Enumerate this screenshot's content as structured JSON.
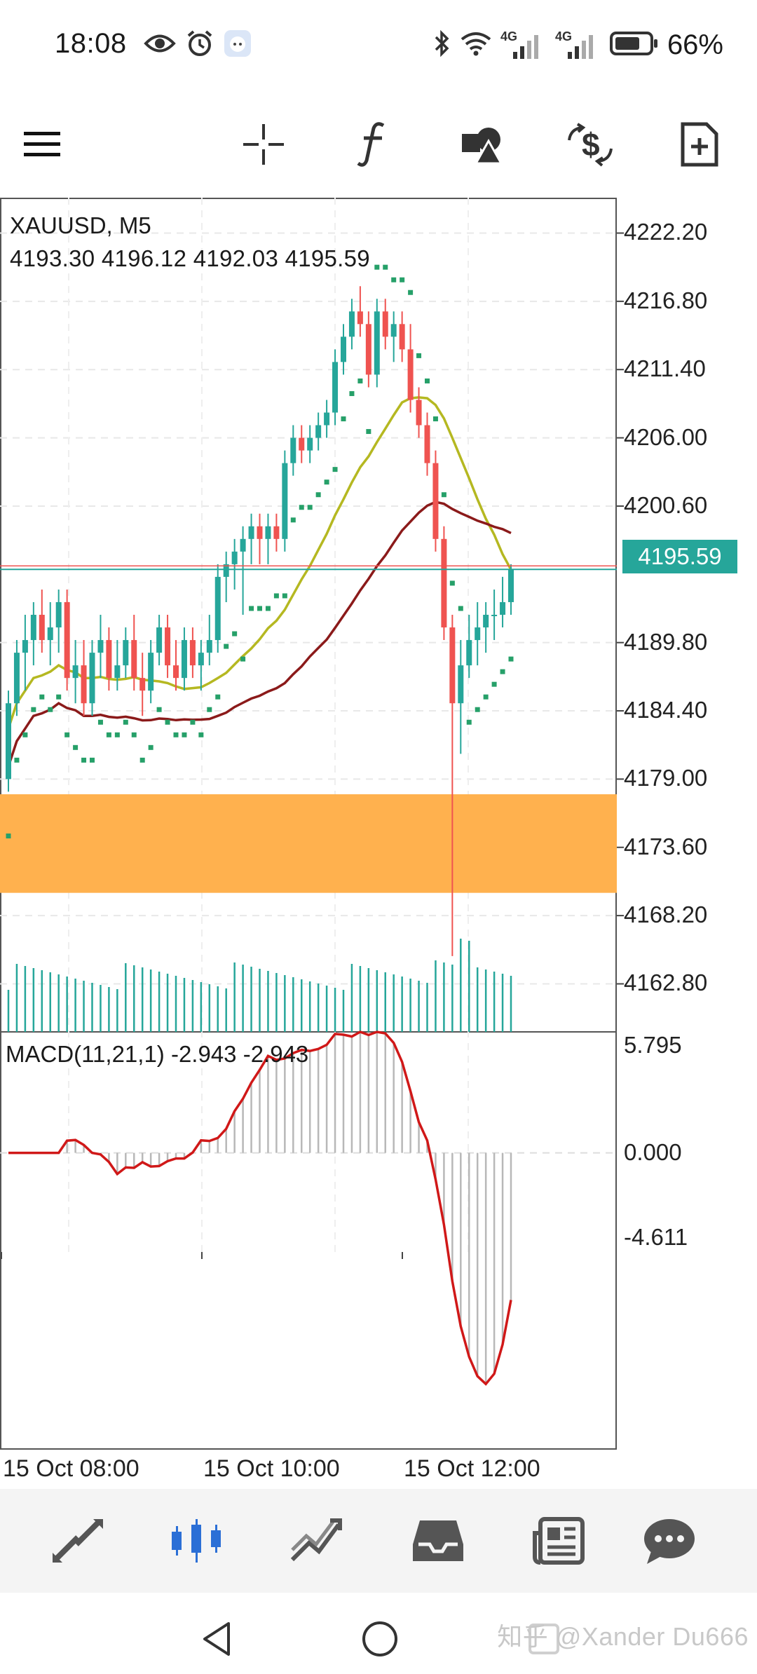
{
  "status": {
    "time": "18:08",
    "battery": "66%",
    "net1": "4G",
    "net2": "4G"
  },
  "toolbar": {
    "icons": [
      "menu-icon",
      "crosshair-icon",
      "function-icon",
      "objects-icon",
      "trade-icon",
      "new-document-icon"
    ]
  },
  "chart": {
    "symbol": "XAUUSD, M5",
    "ohlc": "4193.30 4196.12 4192.03 4195.59",
    "current_price": "4195.59",
    "y_labels": [
      "4222.20",
      "4216.80",
      "4211.40",
      "4206.00",
      "4200.60",
      "4189.80",
      "4184.40",
      "4179.00",
      "4173.60",
      "4168.20",
      "4162.80"
    ],
    "macd_label": "MACD(11,21,1) -2.943 -2.943",
    "macd_y_labels": [
      "5.795",
      "0.000",
      "-4.611"
    ],
    "x_labels": [
      "15 Oct 08:00",
      "15 Oct 10:00",
      "15 Oct 12:00"
    ],
    "colors": {
      "up": "#26a69a",
      "down": "#ef5350",
      "sar": "#26a069",
      "ma_fast": "#b5b821",
      "ma_slow": "#8b1a1a",
      "zone": "#ffb14e",
      "macd_line": "#d01818",
      "macd_hist": "#b8b8b8",
      "price_tag": "#26a69a"
    }
  },
  "chart_data": {
    "type": "candlestick",
    "title": "XAUUSD, M5",
    "ylim": [
      4159,
      4225
    ],
    "zone": [
      4170.0,
      4177.8
    ],
    "last_price": 4195.59,
    "x_ticks": [
      "15 Oct 08:00",
      "15 Oct 10:00",
      "15 Oct 12:00"
    ],
    "candles": [
      [
        4179,
        4186,
        4178,
        4185
      ],
      [
        4185,
        4190,
        4184,
        4189
      ],
      [
        4189,
        4192,
        4186,
        4190
      ],
      [
        4190,
        4193,
        4188,
        4192
      ],
      [
        4192,
        4194,
        4189,
        4190
      ],
      [
        4190,
        4193,
        4188,
        4191
      ],
      [
        4191,
        4194,
        4189,
        4193
      ],
      [
        4193,
        4194,
        4186,
        4187
      ],
      [
        4187,
        4190,
        4185,
        4188
      ],
      [
        4188,
        4190,
        4184,
        4185
      ],
      [
        4185,
        4190,
        4184,
        4189
      ],
      [
        4189,
        4192,
        4187,
        4190
      ],
      [
        4190,
        4191,
        4186,
        4187
      ],
      [
        4187,
        4190,
        4186,
        4188
      ],
      [
        4188,
        4191,
        4187,
        4190
      ],
      [
        4190,
        4192,
        4186,
        4187
      ],
      [
        4187,
        4189,
        4184,
        4186
      ],
      [
        4186,
        4190,
        4185,
        4189
      ],
      [
        4189,
        4192,
        4188,
        4191
      ],
      [
        4191,
        4192,
        4187,
        4188
      ],
      [
        4188,
        4190,
        4186,
        4187
      ],
      [
        4187,
        4191,
        4186,
        4190
      ],
      [
        4190,
        4191,
        4187,
        4188
      ],
      [
        4188,
        4190,
        4186,
        4189
      ],
      [
        4189,
        4192,
        4188,
        4190
      ],
      [
        4190,
        4196,
        4189,
        4195
      ],
      [
        4195,
        4197,
        4193,
        4196
      ],
      [
        4196,
        4198,
        4194,
        4197
      ],
      [
        4197,
        4199,
        4192,
        4198
      ],
      [
        4198,
        4200,
        4196,
        4199
      ],
      [
        4199,
        4200,
        4196,
        4198
      ],
      [
        4198,
        4200,
        4196,
        4199
      ],
      [
        4199,
        4200,
        4197,
        4198
      ],
      [
        4198,
        4205,
        4197,
        4204
      ],
      [
        4204,
        4207,
        4203,
        4206
      ],
      [
        4206,
        4207,
        4204,
        4205
      ],
      [
        4205,
        4207,
        4204,
        4206
      ],
      [
        4206,
        4208,
        4205,
        4207
      ],
      [
        4207,
        4209,
        4206,
        4208
      ],
      [
        4208,
        4213,
        4207,
        4212
      ],
      [
        4212,
        4215,
        4211,
        4214
      ],
      [
        4214,
        4217,
        4213,
        4216
      ],
      [
        4216,
        4218,
        4214,
        4215
      ],
      [
        4215,
        4216,
        4210,
        4211
      ],
      [
        4211,
        4217,
        4210,
        4216
      ],
      [
        4216,
        4217,
        4213,
        4214
      ],
      [
        4214,
        4216,
        4212,
        4215
      ],
      [
        4215,
        4216,
        4212,
        4213
      ],
      [
        4213,
        4215,
        4208,
        4209
      ],
      [
        4209,
        4210,
        4206,
        4207
      ],
      [
        4207,
        4208,
        4203,
        4204
      ],
      [
        4204,
        4205,
        4197,
        4198
      ],
      [
        4198,
        4199,
        4190,
        4191
      ],
      [
        4191,
        4192,
        4165,
        4185
      ],
      [
        4185,
        4190,
        4181,
        4188
      ],
      [
        4188,
        4192,
        4187,
        4190
      ],
      [
        4190,
        4193,
        4188,
        4191
      ],
      [
        4191,
        4193,
        4189,
        4192
      ],
      [
        4192,
        4194,
        4190,
        4192
      ],
      [
        4192,
        4195,
        4191,
        4193
      ],
      [
        4193,
        4196,
        4192,
        4195.59
      ]
    ]
  }
}
